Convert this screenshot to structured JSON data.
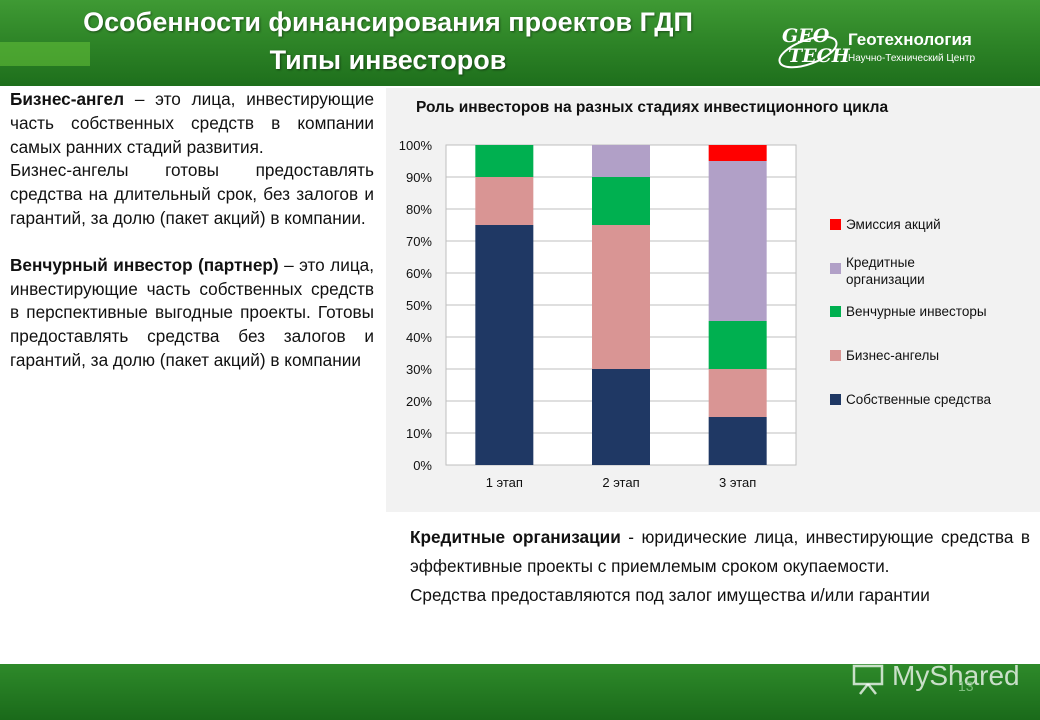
{
  "header": {
    "title_line1": "Особенности финансирования проектов ГДП",
    "title_line2": "Типы инвесторов",
    "logo": {
      "mark_line1": "GEO",
      "mark_line2": "TECH",
      "name": "Геотехнология",
      "subtitle": "Научно-Технический Центр"
    }
  },
  "left": {
    "angel_term": "Бизнес-ангел",
    "angel_def": " – это лица, инвестирующие часть собственных средств в компании самых ранних стадий развития.",
    "angel_extra": "Бизнес-ангелы готовы предоставлять средства на длительный срок, без залогов и гарантий, за долю (пакет акций) в компании.",
    "venture_term": "Венчурный инвестор (партнер)",
    "venture_def": " – это лица, инвестирующие часть собственных средств в перспективные выгодные проекты. Готовы предоставлять средства без залогов и гарантий, за долю (пакет акций) в компании"
  },
  "right": {
    "credit_term": "Кредитные организации",
    "credit_def": " - юридические лица, инвестирующие средства в эффективные проекты с приемлемым сроком окупаемости.",
    "credit_extra": "Средства предоставляются под залог имущества и/или гарантии"
  },
  "chart_data": {
    "type": "bar",
    "stacked": true,
    "title": "Роль инвесторов на разных стадиях инвестиционного цикла",
    "categories": [
      "1 этап",
      "2 этап",
      "3 этап"
    ],
    "ylim": [
      0,
      100
    ],
    "y_ticks": [
      "0%",
      "10%",
      "20%",
      "30%",
      "40%",
      "50%",
      "60%",
      "70%",
      "80%",
      "90%",
      "100%"
    ],
    "grid": true,
    "legend_position": "right",
    "series": [
      {
        "name": "Собственные средства",
        "color": "#1f3864",
        "values": [
          75,
          30,
          15
        ]
      },
      {
        "name": "Бизнес-ангелы",
        "color": "#d99594",
        "values": [
          15,
          45,
          15
        ]
      },
      {
        "name": "Венчурные инвесторы",
        "color": "#00b050",
        "values": [
          10,
          15,
          15
        ]
      },
      {
        "name": "Кредитные организации",
        "color": "#b1a0c7",
        "values": [
          0,
          10,
          50
        ]
      },
      {
        "name": "Эмиссия акций",
        "color": "#ff0000",
        "values": [
          0,
          0,
          5
        ]
      }
    ],
    "legend_order": [
      "Эмиссия акций",
      "Кредитные организации",
      "Венчурные инвесторы",
      "Бизнес-ангелы",
      "Собственные средства"
    ]
  },
  "footer": {
    "page_number": "13",
    "watermark": "MyShared"
  }
}
